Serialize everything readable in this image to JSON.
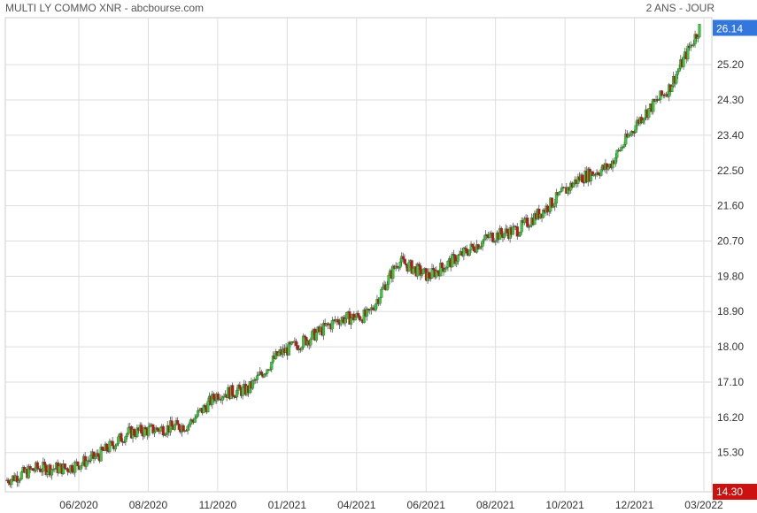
{
  "header": {
    "title": "MULTI LY COMMO XNR - abcbourse.com",
    "period": "2 ANS - JOUR"
  },
  "colors": {
    "up": "#33cc33",
    "down": "#cc1111",
    "grid": "#dddddd",
    "last_price_bg": "#3377dd",
    "low_price_bg": "#cc1111"
  },
  "chart_data": {
    "type": "candlestick",
    "title": "MULTI LY COMMO XNR",
    "period": "2 ANS - JOUR",
    "x_ticks": [
      "06/2020",
      "08/2020",
      "11/2020",
      "01/2021",
      "04/2021",
      "06/2021",
      "08/2021",
      "10/2021",
      "12/2021",
      "03/2022"
    ],
    "y_ticks": [
      "15.30",
      "16.20",
      "17.10",
      "18.00",
      "18.90",
      "19.80",
      "20.70",
      "21.60",
      "22.50",
      "23.40",
      "24.30",
      "25.20"
    ],
    "ylim": [
      14.3,
      26.4
    ],
    "last_price": "26.14",
    "low_price": "14.30",
    "grid": true,
    "closes_approx": [
      {
        "date": "2020-04",
        "close": 14.6
      },
      {
        "date": "2020-05",
        "close": 14.9
      },
      {
        "date": "2020-06",
        "close": 14.9
      },
      {
        "date": "2020-07",
        "close": 15.2
      },
      {
        "date": "2020-08",
        "close": 15.8
      },
      {
        "date": "2020-09",
        "close": 15.9
      },
      {
        "date": "2020-10",
        "close": 16.0
      },
      {
        "date": "2020-11",
        "close": 16.8
      },
      {
        "date": "2020-12",
        "close": 16.9
      },
      {
        "date": "2021-01",
        "close": 17.8
      },
      {
        "date": "2021-02",
        "close": 18.2
      },
      {
        "date": "2021-03",
        "close": 18.7
      },
      {
        "date": "2021-04",
        "close": 18.8
      },
      {
        "date": "2021-05",
        "close": 20.2
      },
      {
        "date": "2021-06",
        "close": 19.8
      },
      {
        "date": "2021-07",
        "close": 20.3
      },
      {
        "date": "2021-08",
        "close": 20.8
      },
      {
        "date": "2021-09",
        "close": 21.0
      },
      {
        "date": "2021-10",
        "close": 21.6
      },
      {
        "date": "2021-11",
        "close": 22.3
      },
      {
        "date": "2021-12",
        "close": 22.6
      },
      {
        "date": "2022-01",
        "close": 23.8
      },
      {
        "date": "2022-02",
        "close": 24.6
      },
      {
        "date": "2022-03",
        "close": 26.14
      }
    ]
  }
}
